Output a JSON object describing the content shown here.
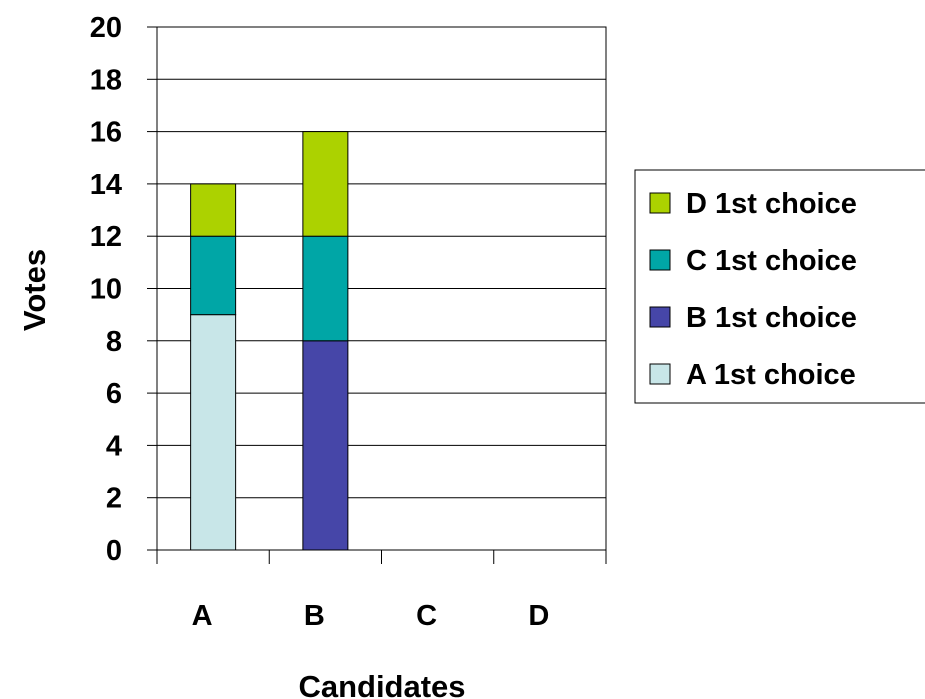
{
  "chart_data": {
    "type": "bar",
    "stacked": true,
    "categories": [
      "A",
      "B",
      "C",
      "D"
    ],
    "series": [
      {
        "name": "A 1st choice",
        "values": [
          9,
          0,
          0,
          0
        ],
        "color": "#c8e6e8"
      },
      {
        "name": "B 1st choice",
        "values": [
          0,
          8,
          0,
          0
        ],
        "color": "#4646a8"
      },
      {
        "name": "C 1st choice",
        "values": [
          3,
          4,
          0,
          0
        ],
        "color": "#00a6a6"
      },
      {
        "name": "D 1st choice",
        "values": [
          2,
          4,
          0,
          0
        ],
        "color": "#acd200"
      }
    ],
    "legend_order": [
      "D 1st choice",
      "C 1st choice",
      "B 1st choice",
      "A 1st choice"
    ],
    "xlabel": "Candidates",
    "ylabel": "Votes",
    "ylim": [
      0,
      20
    ],
    "yticks": [
      0,
      2,
      4,
      6,
      8,
      10,
      12,
      14,
      16,
      18,
      20
    ],
    "grid": true,
    "legend_position": "right"
  }
}
